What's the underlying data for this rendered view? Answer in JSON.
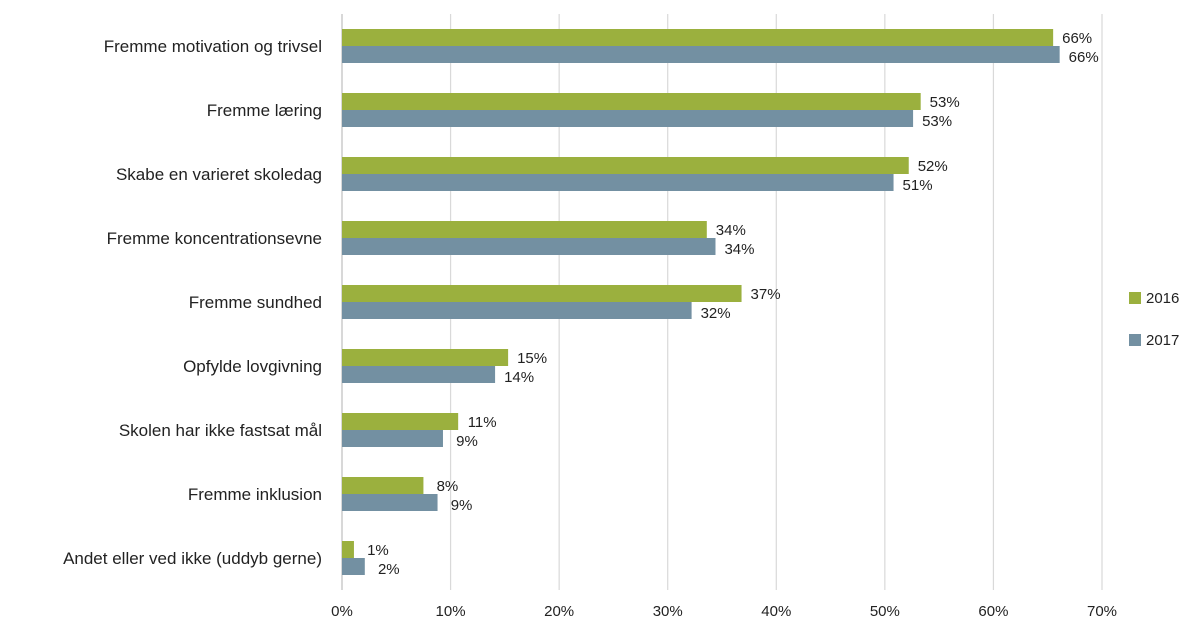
{
  "chart_data": {
    "type": "bar",
    "orientation": "horizontal",
    "categories": [
      "Fremme motivation og trivsel",
      "Fremme læring",
      "Skabe en varieret skoledag",
      "Fremme koncentrationsevne",
      "Fremme sundhed",
      "Opfylde lovgivning",
      "Skolen har ikke fastsat mål",
      "Fremme inklusion",
      "Andet eller ved ikke (uddyb gerne)"
    ],
    "series": [
      {
        "name": "2016",
        "color": "#9bb03e",
        "values": [
          65.5,
          53.3,
          52.2,
          33.6,
          36.8,
          15.3,
          10.7,
          7.5,
          1.1
        ],
        "labels": [
          "66%",
          "53%",
          "52%",
          "34%",
          "37%",
          "15%",
          "11%",
          "8%",
          "1%"
        ]
      },
      {
        "name": "2017",
        "color": "#7390a2",
        "values": [
          66.1,
          52.6,
          50.8,
          34.4,
          32.2,
          14.1,
          9.3,
          8.8,
          2.1
        ],
        "labels": [
          "66%",
          "53%",
          "51%",
          "34%",
          "32%",
          "14%",
          "9%",
          "9%",
          "2%"
        ]
      }
    ],
    "xlim": [
      0,
      70
    ],
    "x_ticks": [
      0,
      10,
      20,
      30,
      40,
      50,
      60,
      70
    ],
    "x_tick_labels": [
      "0%",
      "10%",
      "20%",
      "30%",
      "40%",
      "50%",
      "60%",
      "70%"
    ],
    "grid": "vertical",
    "legend": "right",
    "title": "",
    "xlabel": "",
    "ylabel": ""
  }
}
